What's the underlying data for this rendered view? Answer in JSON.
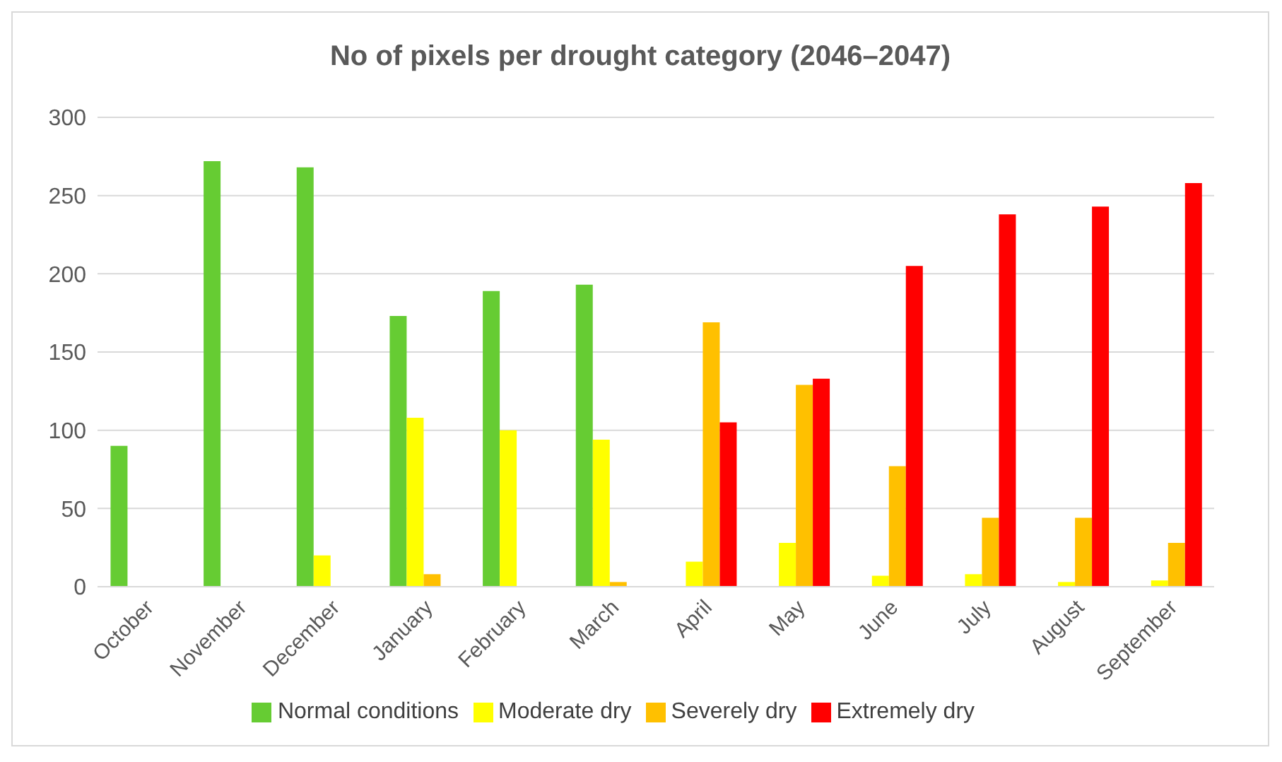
{
  "chart_data": {
    "type": "bar",
    "title": "No of pixels per drought category (2046–2047)",
    "categories": [
      "October",
      "November",
      "December",
      "January",
      "February",
      "March",
      "April",
      "May",
      "June",
      "July",
      "August",
      "September"
    ],
    "series": [
      {
        "name": "Normal conditions",
        "color": "#66cc33",
        "values": [
          90,
          272,
          268,
          173,
          189,
          193,
          0,
          0,
          0,
          0,
          0,
          0
        ]
      },
      {
        "name": "Moderate dry",
        "color": "#ffff00",
        "values": [
          0,
          0,
          20,
          108,
          100,
          94,
          16,
          28,
          7,
          8,
          3,
          4
        ]
      },
      {
        "name": "Severely dry",
        "color": "#ffc000",
        "values": [
          0,
          0,
          0,
          8,
          0,
          3,
          169,
          129,
          77,
          44,
          44,
          28
        ]
      },
      {
        "name": "Extremely dry",
        "color": "#ff0000",
        "values": [
          0,
          0,
          0,
          0,
          0,
          0,
          105,
          133,
          205,
          238,
          243,
          258
        ]
      }
    ],
    "ylim": [
      0,
      300
    ],
    "yticks": [
      0,
      50,
      100,
      150,
      200,
      250,
      300
    ],
    "grid": "y",
    "legend": "bottom"
  }
}
